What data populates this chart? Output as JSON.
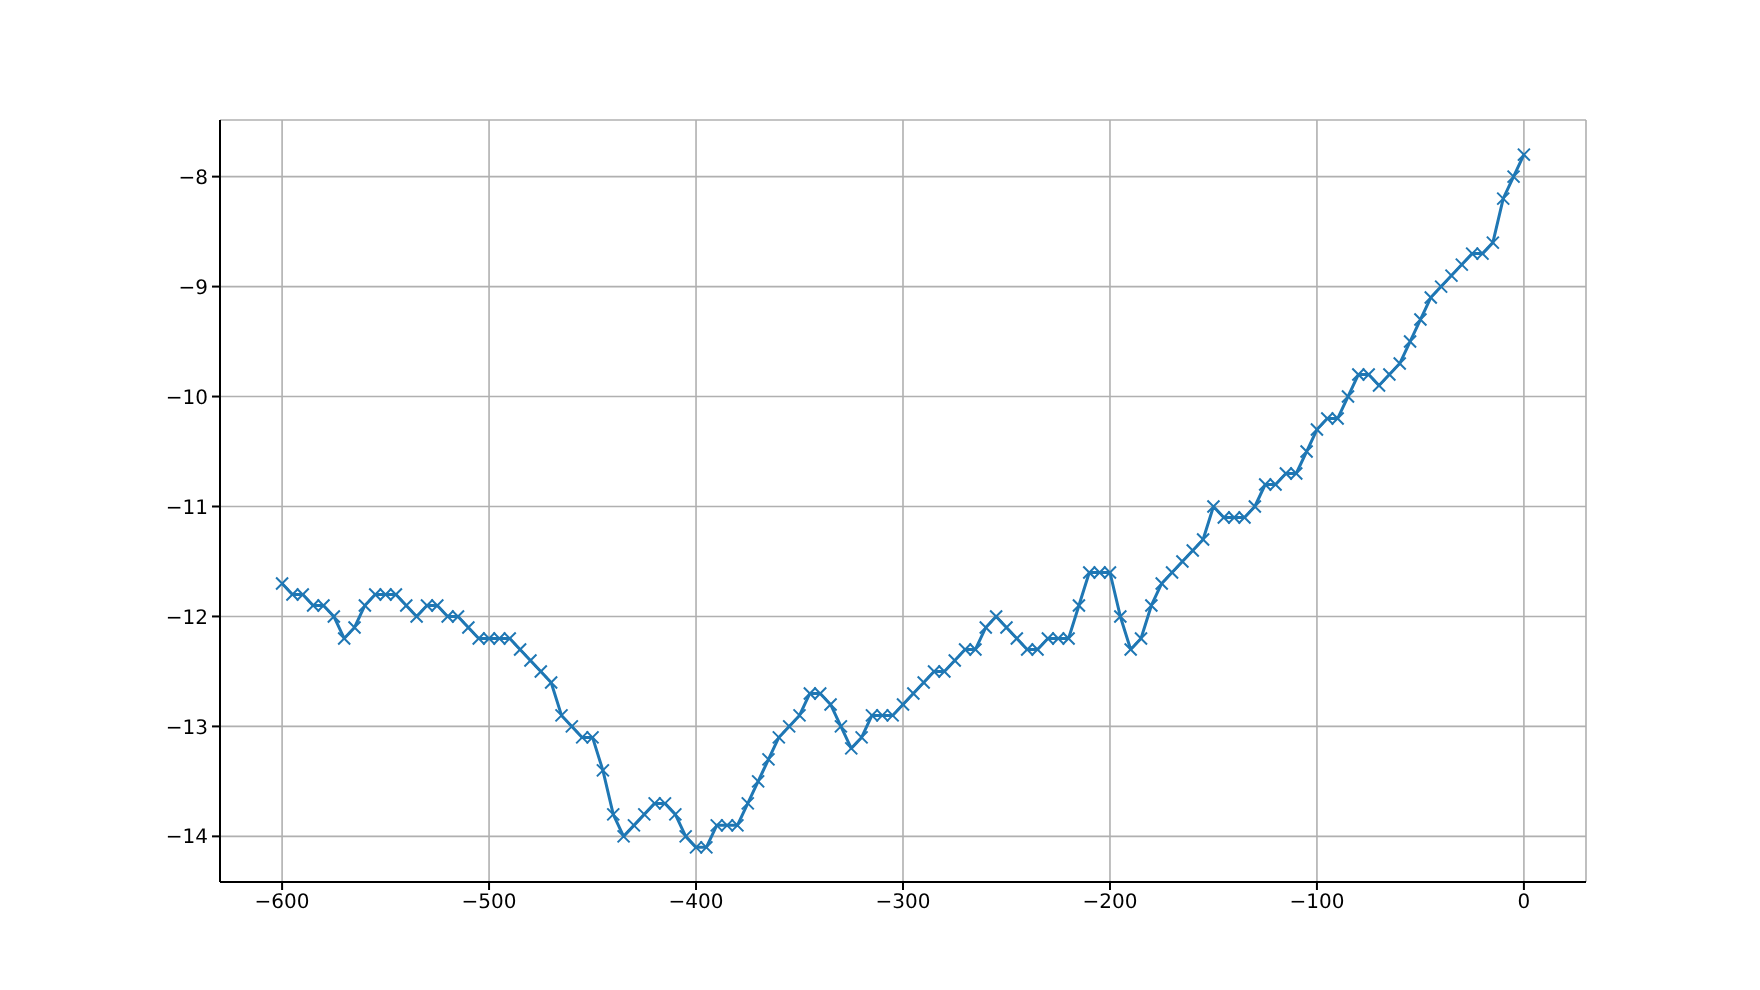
{
  "chart_data": {
    "type": "line",
    "color": "#1f77b4",
    "marker": "cross",
    "line_style": "solid",
    "grid": true,
    "x": [
      -600,
      -595,
      -590,
      -585,
      -580,
      -575,
      -570,
      -565,
      -560,
      -555,
      -550,
      -545,
      -540,
      -535,
      -530,
      -525,
      -520,
      -515,
      -510,
      -505,
      -500,
      -495,
      -490,
      -485,
      -480,
      -475,
      -470,
      -465,
      -460,
      -455,
      -450,
      -445,
      -440,
      -435,
      -430,
      -425,
      -420,
      -415,
      -410,
      -405,
      -400,
      -395,
      -390,
      -385,
      -380,
      -375,
      -370,
      -365,
      -360,
      -355,
      -350,
      -345,
      -340,
      -335,
      -330,
      -325,
      -320,
      -315,
      -310,
      -305,
      -300,
      -295,
      -290,
      -285,
      -280,
      -275,
      -270,
      -265,
      -260,
      -255,
      -250,
      -245,
      -240,
      -235,
      -230,
      -225,
      -220,
      -215,
      -210,
      -205,
      -200,
      -195,
      -190,
      -185,
      -180,
      -175,
      -170,
      -165,
      -160,
      -155,
      -150,
      -145,
      -140,
      -135,
      -130,
      -125,
      -120,
      -115,
      -110,
      -105,
      -100,
      -95,
      -90,
      -85,
      -80,
      -75,
      -70,
      -65,
      -60,
      -55,
      -50,
      -45,
      -40,
      -35,
      -30,
      -25,
      -20,
      -15,
      -10,
      -5,
      0
    ],
    "values": [
      -11.7,
      -11.8,
      -11.8,
      -11.9,
      -11.9,
      -12.0,
      -12.2,
      -12.1,
      -11.9,
      -11.8,
      -11.8,
      -11.8,
      -11.9,
      -12.0,
      -11.9,
      -11.9,
      -12.0,
      -12.0,
      -12.1,
      -12.2,
      -12.2,
      -12.2,
      -12.2,
      -12.3,
      -12.4,
      -12.5,
      -12.6,
      -12.9,
      -13.0,
      -13.1,
      -13.1,
      -13.4,
      -13.8,
      -14.0,
      -13.9,
      -13.8,
      -13.7,
      -13.7,
      -13.8,
      -14.0,
      -14.1,
      -14.1,
      -13.9,
      -13.9,
      -13.9,
      -13.7,
      -13.5,
      -13.3,
      -13.1,
      -13.0,
      -12.9,
      -12.7,
      -12.7,
      -12.8,
      -13.0,
      -13.2,
      -13.1,
      -12.9,
      -12.9,
      -12.9,
      -12.8,
      -12.7,
      -12.6,
      -12.5,
      -12.5,
      -12.4,
      -12.3,
      -12.3,
      -12.1,
      -12.0,
      -12.1,
      -12.2,
      -12.3,
      -12.3,
      -12.2,
      -12.2,
      -12.2,
      -11.9,
      -11.6,
      -11.6,
      -11.6,
      -12.0,
      -12.3,
      -12.2,
      -11.9,
      -11.7,
      -11.6,
      -11.5,
      -11.4,
      -11.3,
      -11.0,
      -11.1,
      -11.1,
      -11.1,
      -11.0,
      -10.8,
      -10.8,
      -10.7,
      -10.7,
      -10.5,
      -10.3,
      -10.2,
      -10.2,
      -10.0,
      -9.8,
      -9.8,
      -9.9,
      -9.8,
      -9.7,
      -9.5,
      -9.3,
      -9.1,
      -9.0,
      -8.9,
      -8.8,
      -8.7,
      -8.7,
      -8.6,
      -8.2,
      -8.0,
      -7.8
    ],
    "xlim": [
      -630,
      30
    ],
    "xticks": [
      -600,
      -500,
      -400,
      -300,
      -200,
      -100,
      0
    ],
    "ylim": [
      -14.415,
      -7.485
    ],
    "yticks": [
      -14,
      -13,
      -12,
      -11,
      -10,
      -9,
      -8
    ]
  }
}
